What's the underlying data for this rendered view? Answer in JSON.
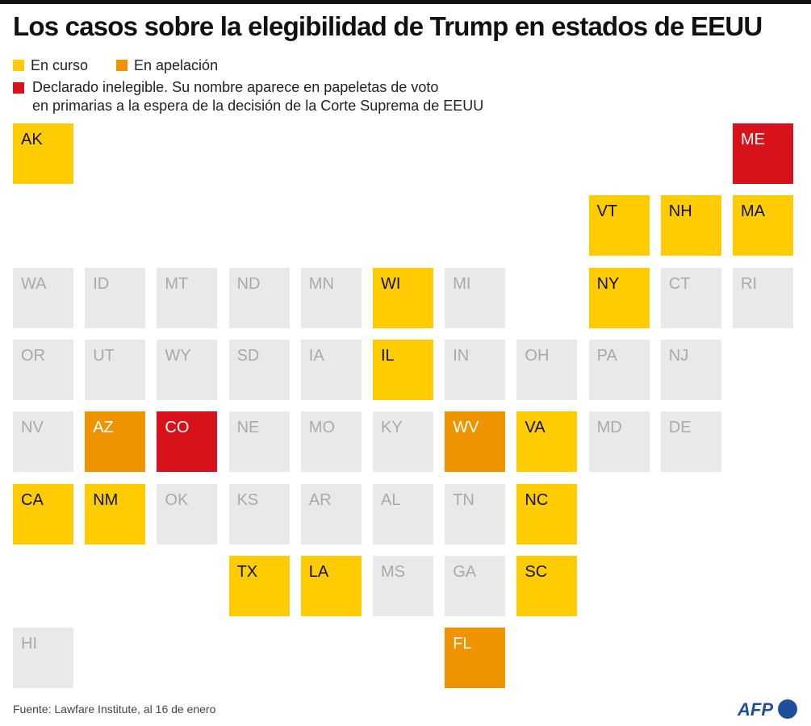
{
  "title": "Los casos sobre la elegibilidad de Trump en estados de EEUU",
  "legend": {
    "ongoing": "En curso",
    "appeal": "En apelación",
    "ineligible_line1": "Declarado inelegible. Su nombre aparece en papeletas de voto",
    "ineligible_line2": "en primarias a la espera de la decisión de la Corte Suprema de EEUU"
  },
  "colors": {
    "ongoing": "#fecc00",
    "appeal": "#f09300",
    "ineligible": "#d7121b",
    "none": "#e9e9e9"
  },
  "chart_data": {
    "type": "tile-map",
    "states": [
      {
        "code": "AK",
        "row": 0,
        "col": 0,
        "status": "ongoing"
      },
      {
        "code": "ME",
        "row": 0,
        "col": 10,
        "status": "ineligible"
      },
      {
        "code": "VT",
        "row": 1,
        "col": 8,
        "status": "ongoing"
      },
      {
        "code": "NH",
        "row": 1,
        "col": 9,
        "status": "ongoing"
      },
      {
        "code": "MA",
        "row": 1,
        "col": 10,
        "status": "ongoing"
      },
      {
        "code": "WA",
        "row": 2,
        "col": 0,
        "status": "none"
      },
      {
        "code": "ID",
        "row": 2,
        "col": 1,
        "status": "none"
      },
      {
        "code": "MT",
        "row": 2,
        "col": 2,
        "status": "none"
      },
      {
        "code": "ND",
        "row": 2,
        "col": 3,
        "status": "none"
      },
      {
        "code": "MN",
        "row": 2,
        "col": 4,
        "status": "none"
      },
      {
        "code": "WI",
        "row": 2,
        "col": 5,
        "status": "ongoing"
      },
      {
        "code": "MI",
        "row": 2,
        "col": 6,
        "status": "none"
      },
      {
        "code": "NY",
        "row": 2,
        "col": 8,
        "status": "ongoing"
      },
      {
        "code": "CT",
        "row": 2,
        "col": 9,
        "status": "none"
      },
      {
        "code": "RI",
        "row": 2,
        "col": 10,
        "status": "none"
      },
      {
        "code": "OR",
        "row": 3,
        "col": 0,
        "status": "none"
      },
      {
        "code": "UT",
        "row": 3,
        "col": 1,
        "status": "none"
      },
      {
        "code": "WY",
        "row": 3,
        "col": 2,
        "status": "none"
      },
      {
        "code": "SD",
        "row": 3,
        "col": 3,
        "status": "none"
      },
      {
        "code": "IA",
        "row": 3,
        "col": 4,
        "status": "none"
      },
      {
        "code": "IL",
        "row": 3,
        "col": 5,
        "status": "ongoing"
      },
      {
        "code": "IN",
        "row": 3,
        "col": 6,
        "status": "none"
      },
      {
        "code": "OH",
        "row": 3,
        "col": 7,
        "status": "none"
      },
      {
        "code": "PA",
        "row": 3,
        "col": 8,
        "status": "none"
      },
      {
        "code": "NJ",
        "row": 3,
        "col": 9,
        "status": "none"
      },
      {
        "code": "NV",
        "row": 4,
        "col": 0,
        "status": "none"
      },
      {
        "code": "AZ",
        "row": 4,
        "col": 1,
        "status": "appeal"
      },
      {
        "code": "CO",
        "row": 4,
        "col": 2,
        "status": "ineligible"
      },
      {
        "code": "NE",
        "row": 4,
        "col": 3,
        "status": "none"
      },
      {
        "code": "MO",
        "row": 4,
        "col": 4,
        "status": "none"
      },
      {
        "code": "KY",
        "row": 4,
        "col": 5,
        "status": "none"
      },
      {
        "code": "WV",
        "row": 4,
        "col": 6,
        "status": "appeal"
      },
      {
        "code": "VA",
        "row": 4,
        "col": 7,
        "status": "ongoing"
      },
      {
        "code": "MD",
        "row": 4,
        "col": 8,
        "status": "none"
      },
      {
        "code": "DE",
        "row": 4,
        "col": 9,
        "status": "none"
      },
      {
        "code": "CA",
        "row": 5,
        "col": 0,
        "status": "ongoing"
      },
      {
        "code": "NM",
        "row": 5,
        "col": 1,
        "status": "ongoing"
      },
      {
        "code": "OK",
        "row": 5,
        "col": 2,
        "status": "none"
      },
      {
        "code": "KS",
        "row": 5,
        "col": 3,
        "status": "none"
      },
      {
        "code": "AR",
        "row": 5,
        "col": 4,
        "status": "none"
      },
      {
        "code": "AL",
        "row": 5,
        "col": 5,
        "status": "none"
      },
      {
        "code": "TN",
        "row": 5,
        "col": 6,
        "status": "none"
      },
      {
        "code": "NC",
        "row": 5,
        "col": 7,
        "status": "ongoing"
      },
      {
        "code": "TX",
        "row": 6,
        "col": 3,
        "status": "ongoing"
      },
      {
        "code": "LA",
        "row": 6,
        "col": 4,
        "status": "ongoing"
      },
      {
        "code": "MS",
        "row": 6,
        "col": 5,
        "status": "none"
      },
      {
        "code": "GA",
        "row": 6,
        "col": 6,
        "status": "none"
      },
      {
        "code": "SC",
        "row": 6,
        "col": 7,
        "status": "ongoing"
      },
      {
        "code": "HI",
        "row": 7,
        "col": 0,
        "status": "none"
      },
      {
        "code": "FL",
        "row": 7,
        "col": 6,
        "status": "appeal"
      }
    ]
  },
  "source": "Fuente: Lawfare Institute, al 16 de enero",
  "logo": "AFP"
}
